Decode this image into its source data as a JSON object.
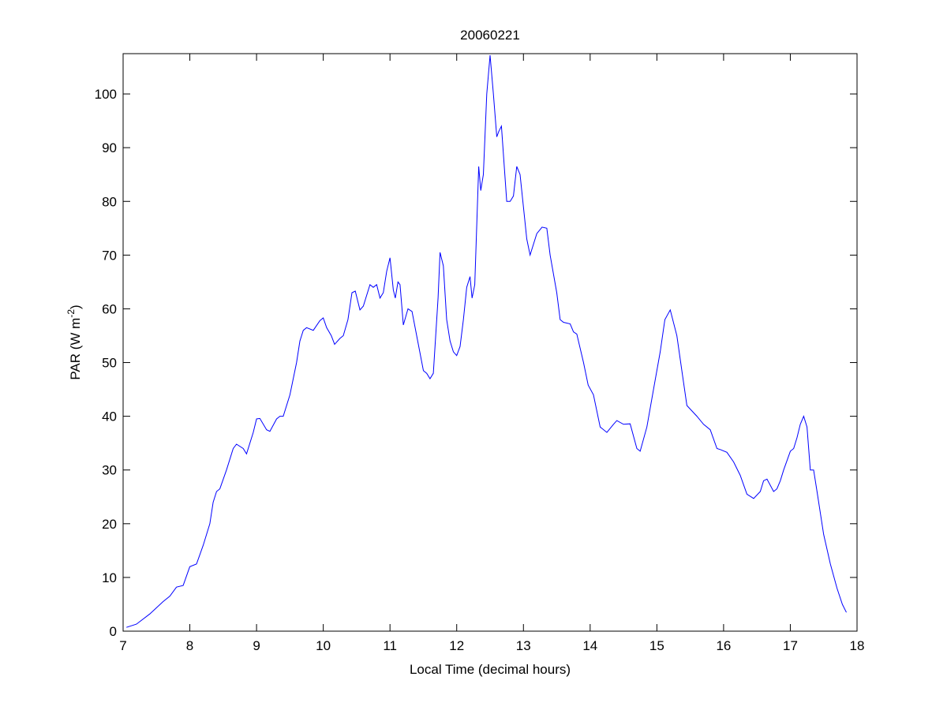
{
  "chart_data": {
    "type": "line",
    "title": "20060221",
    "xlabel": "Local Time (decimal hours)",
    "ylabel_main": "PAR (W m",
    "ylabel_sup": "-2",
    "ylabel_close": ")",
    "xlim": [
      7,
      18
    ],
    "ylim": [
      0,
      107.5
    ],
    "xticks": [
      7,
      8,
      9,
      10,
      11,
      12,
      13,
      14,
      15,
      16,
      17,
      18
    ],
    "yticks": [
      0,
      10,
      20,
      30,
      40,
      50,
      60,
      70,
      80,
      90,
      100
    ],
    "grid": false,
    "line_color": "#0000ff",
    "series": [
      {
        "x": [
          7.05,
          7.2,
          7.4,
          7.6,
          7.7,
          7.8,
          7.9,
          8.0,
          8.1,
          8.2,
          8.3,
          8.35,
          8.4,
          8.45,
          8.55,
          8.65,
          8.7,
          8.8,
          8.85,
          8.95,
          9.0,
          9.05,
          9.15,
          9.2,
          9.3,
          9.35,
          9.4,
          9.5,
          9.6,
          9.65,
          9.7,
          9.75,
          9.85,
          9.95,
          10.0,
          10.05,
          10.12,
          10.17,
          10.25,
          10.3,
          10.37,
          10.43,
          10.48,
          10.55,
          10.6,
          10.7,
          10.75,
          10.8,
          10.85,
          10.9,
          10.95,
          11.0,
          11.05,
          11.08,
          11.12,
          11.15,
          11.2,
          11.27,
          11.33,
          11.4,
          11.5,
          11.55,
          11.6,
          11.65,
          11.72,
          11.75,
          11.8,
          11.85,
          11.9,
          11.95,
          12.0,
          12.05,
          12.1,
          12.15,
          12.2,
          12.23,
          12.27,
          12.33,
          12.36,
          12.4,
          12.45,
          12.5,
          12.55,
          12.6,
          12.63,
          12.67,
          12.75,
          12.8,
          12.85,
          12.9,
          12.95,
          13.05,
          13.1,
          13.2,
          13.28,
          13.35,
          13.4,
          13.5,
          13.55,
          13.6,
          13.7,
          13.75,
          13.8,
          13.9,
          13.97,
          14.05,
          14.15,
          14.25,
          14.35,
          14.4,
          14.5,
          14.6,
          14.7,
          14.75,
          14.85,
          14.95,
          15.05,
          15.12,
          15.2,
          15.3,
          15.38,
          15.45,
          15.6,
          15.7,
          15.8,
          15.9,
          15.95,
          16.05,
          16.15,
          16.25,
          16.35,
          16.45,
          16.55,
          16.6,
          16.65,
          16.75,
          16.8,
          16.85,
          16.9,
          17.0,
          17.05,
          17.1,
          17.15,
          17.2,
          17.25,
          17.3,
          17.35,
          17.4,
          17.5,
          17.6,
          17.7,
          17.78,
          17.84
        ],
        "y": [
          0.7,
          1.3,
          3.2,
          5.5,
          6.5,
          8.2,
          8.5,
          12,
          12.5,
          16,
          20,
          24,
          26,
          26.5,
          30,
          34,
          34.8,
          34,
          33,
          37,
          39.5,
          39.6,
          37.5,
          37.2,
          39.5,
          40,
          40,
          44,
          50,
          54,
          56,
          56.5,
          56,
          57.8,
          58.3,
          56.5,
          55,
          53.4,
          54.5,
          55,
          58,
          63,
          63.3,
          59.8,
          60.5,
          64.5,
          64,
          64.5,
          62,
          63,
          67,
          69.5,
          63.5,
          62,
          65,
          64.5,
          57,
          60,
          59.5,
          55,
          48.5,
          48,
          47,
          48,
          62,
          70.5,
          68,
          58,
          54,
          52,
          51.3,
          53,
          58,
          64,
          66,
          62,
          64.5,
          86.5,
          82,
          85,
          100,
          107.2,
          100,
          92,
          93,
          94,
          80,
          80,
          81,
          86.5,
          85,
          73,
          70,
          74,
          75.2,
          75,
          70,
          63,
          58,
          57.5,
          57.2,
          55.7,
          55.3,
          50,
          45.8,
          44,
          38,
          37,
          38.5,
          39.2,
          38.5,
          38.6,
          34,
          33.5,
          38,
          45,
          52,
          58,
          59.8,
          55,
          48,
          42,
          40,
          38.5,
          37.5,
          34,
          33.8,
          33.3,
          31.5,
          29,
          25.5,
          24.7,
          26,
          28,
          28.3,
          26,
          26.5,
          28,
          30,
          33.5,
          34,
          36,
          38.5,
          40,
          38,
          30,
          30,
          26,
          18,
          12.5,
          8,
          5,
          3.5
        ]
      }
    ]
  }
}
